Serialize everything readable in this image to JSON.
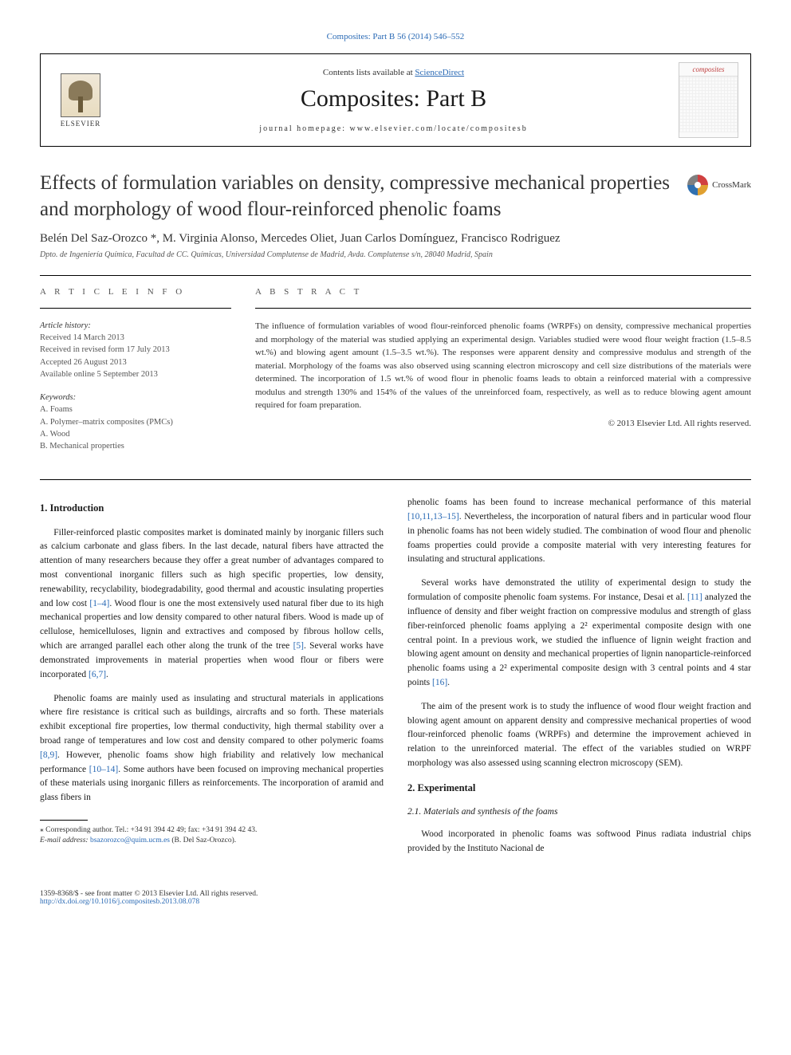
{
  "topLink": "Composites: Part B 56 (2014) 546–552",
  "header": {
    "contents_prefix": "Contents lists available at ",
    "contents_link": "ScienceDirect",
    "journal": "Composites: Part B",
    "homepage_prefix": "journal homepage: ",
    "homepage": "www.elsevier.com/locate/compositesb",
    "elsevier": "ELSEVIER",
    "cover_title": "composites"
  },
  "crossmark": "CrossMark",
  "title": "Effects of formulation variables on density, compressive mechanical properties and morphology of wood flour-reinforced phenolic foams",
  "authors": "Belén Del Saz-Orozco *, M. Virginia Alonso, Mercedes Oliet, Juan Carlos Domínguez, Francisco Rodriguez",
  "affiliation": "Dpto. de Ingeniería Química, Facultad de CC. Químicas, Universidad Complutense de Madrid, Avda. Complutense s/n, 28040 Madrid, Spain",
  "articleInfo": {
    "heading": "A R T I C L E   I N F O",
    "history_label": "Article history:",
    "received": "Received 14 March 2013",
    "revised": "Received in revised form 17 July 2013",
    "accepted": "Accepted 26 August 2013",
    "online": "Available online 5 September 2013",
    "keywords_label": "Keywords:",
    "k1": "A. Foams",
    "k2": "A. Polymer–matrix composites (PMCs)",
    "k3": "A. Wood",
    "k4": "B. Mechanical properties"
  },
  "abstract": {
    "heading": "A B S T R A C T",
    "text": "The influence of formulation variables of wood flour-reinforced phenolic foams (WRPFs) on density, compressive mechanical properties and morphology of the material was studied applying an experimental design. Variables studied were wood flour weight fraction (1.5–8.5 wt.%) and blowing agent amount (1.5–3.5 wt.%). The responses were apparent density and compressive modulus and strength of the material. Morphology of the foams was also observed using scanning electron microscopy and cell size distributions of the materials were determined. The incorporation of 1.5 wt.% of wood flour in phenolic foams leads to obtain a reinforced material with a compressive modulus and strength 130% and 154% of the values of the unreinforced foam, respectively, as well as to reduce blowing agent amount required for foam preparation.",
    "copyright": "© 2013 Elsevier Ltd. All rights reserved."
  },
  "body": {
    "intro_h": "1. Introduction",
    "p1a": "Filler-reinforced plastic composites market is dominated mainly by inorganic fillers such as calcium carbonate and glass fibers. In the last decade, natural fibers have attracted the attention of many researchers because they offer a great number of advantages compared to most conventional inorganic fillers such as high specific properties, low density, renewability, recyclability, biodegradability, good thermal and acoustic insulating properties and low cost ",
    "c1": "[1–4]",
    "p1b": ". Wood flour is one the most extensively used natural fiber due to its high mechanical properties and low density compared to other natural fibers. Wood is made up of cellulose, hemicelluloses, lignin and extractives and composed by fibrous hollow cells, which are arranged parallel each other along the trunk of the tree ",
    "c2": "[5]",
    "p1c": ". Several works have demonstrated improvements in material properties when wood flour or fibers were incorporated ",
    "c3": "[6,7]",
    "p1d": ".",
    "p2a": "Phenolic foams are mainly used as insulating and structural materials in applications where fire resistance is critical such as buildings, aircrafts and so forth. These materials exhibit exceptional fire properties, low thermal conductivity, high thermal stability over a broad range of temperatures and low cost and density compared to other polymeric foams ",
    "c4": "[8,9]",
    "p2b": ". However, phenolic foams show high friability and relatively low mechanical performance ",
    "c5": "[10–14]",
    "p2c": ". Some authors have been focused on improving mechanical properties of these materials using inorganic fillers as reinforcements. The incorporation of aramid and glass fibers in",
    "p3a": "phenolic foams has been found to increase mechanical performance of this material ",
    "c6": "[10,11,13–15]",
    "p3b": ". Nevertheless, the incorporation of natural fibers and in particular wood flour in phenolic foams has not been widely studied. The combination of wood flour and phenolic foams properties could provide a composite material with very interesting features for insulating and structural applications.",
    "p4a": "Several works have demonstrated the utility of experimental design to study the formulation of composite phenolic foam systems. For instance, Desai et al. ",
    "c7": "[11]",
    "p4b": " analyzed the influence of density and fiber weight fraction on compressive modulus and strength of glass fiber-reinforced phenolic foams applying a 2² experimental composite design with one central point. In a previous work, we studied the influence of lignin weight fraction and blowing agent amount on density and mechanical properties of lignin nanoparticle-reinforced phenolic foams using a 2² experimental composite design with 3 central points and 4 star points ",
    "c8": "[16]",
    "p4c": ".",
    "p5": "The aim of the present work is to study the influence of wood flour weight fraction and blowing agent amount on apparent density and compressive mechanical properties of wood flour-reinforced phenolic foams (WRPFs) and determine the improvement achieved in relation to the unreinforced material. The effect of the variables studied on WRPF morphology was also assessed using scanning electron microscopy (SEM).",
    "exp_h": "2. Experimental",
    "mat_h": "2.1. Materials and synthesis of the foams",
    "p6": "Wood incorporated in phenolic foams was softwood Pinus radiata industrial chips provided by the Instituto Nacional de"
  },
  "footnote": {
    "star": "⁎",
    "corresp": " Corresponding author. Tel.: +34 91 394 42 49; fax: +34 91 394 42 43.",
    "email_label": "E-mail address: ",
    "email": "bsazorozco@quim.ucm.es",
    "email_tail": " (B. Del Saz-Orozco)."
  },
  "bottom": {
    "issn": "1359-8368/$ - see front matter © 2013 Elsevier Ltd. All rights reserved.",
    "doi": "http://dx.doi.org/10.1016/j.compositesb.2013.08.078"
  }
}
